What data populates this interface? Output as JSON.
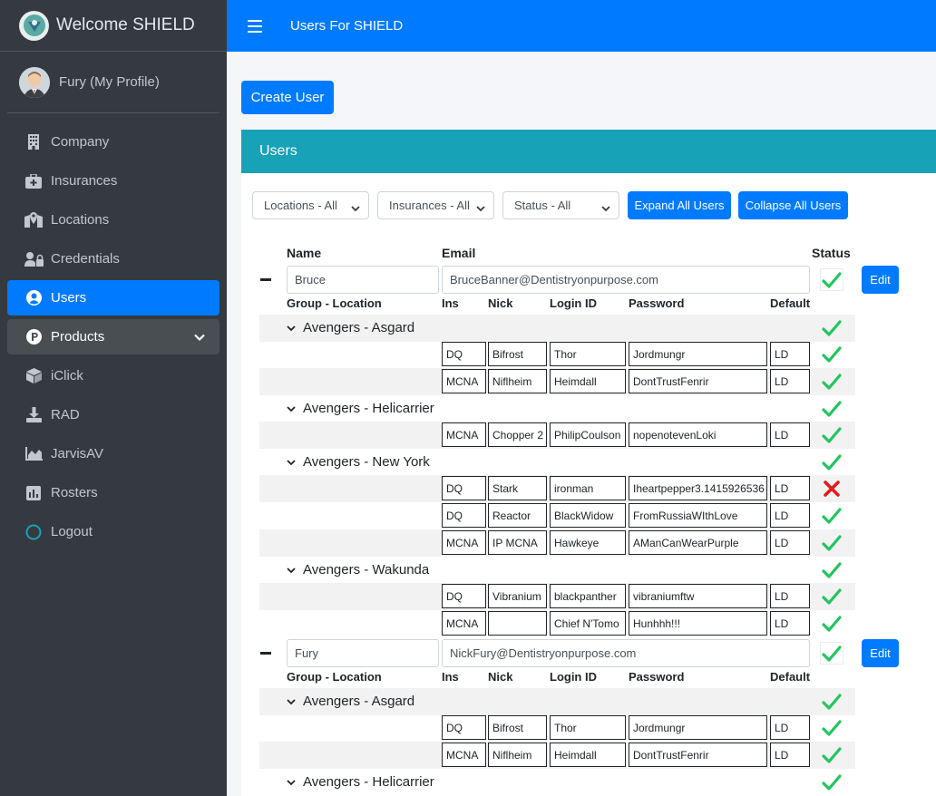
{
  "brand": {
    "title": "Welcome SHIELD"
  },
  "profile": {
    "name": "Fury (My Profile)"
  },
  "sidebar": {
    "items": [
      {
        "label": "Company",
        "icon": "building-icon"
      },
      {
        "label": "Insurances",
        "icon": "medkit-icon"
      },
      {
        "label": "Locations",
        "icon": "map-marker-icon"
      },
      {
        "label": "Credentials",
        "icon": "user-lock-icon"
      },
      {
        "label": "Users",
        "icon": "user-circle-icon",
        "active": true
      },
      {
        "label": "Products",
        "icon": "product-p-icon",
        "expanded": true
      },
      {
        "label": "iClick",
        "icon": "cube-icon"
      },
      {
        "label": "RAD",
        "icon": "download-icon"
      },
      {
        "label": "JarvisAV",
        "icon": "area-chart-icon"
      },
      {
        "label": "Rosters",
        "icon": "bar-chart-icon"
      },
      {
        "label": "Logout",
        "icon": "circle-icon"
      }
    ]
  },
  "topbar": {
    "title": "Users For SHIELD"
  },
  "actions": {
    "create_user": "Create User"
  },
  "card": {
    "title": "Users"
  },
  "filters": {
    "locations": "Locations - All",
    "insurances": "Insurances - All",
    "status": "Status - All",
    "expand_all": "Expand All Users",
    "collapse_all": "Collapse All Users"
  },
  "columns": {
    "name": "Name",
    "email": "Email",
    "status": "Status"
  },
  "subcolumns": {
    "group_location": "Group - Location",
    "ins": "Ins",
    "nick": "Nick",
    "login_id": "Login ID",
    "password": "Password",
    "default": "Default"
  },
  "edit_label": "Edit",
  "users": [
    {
      "name": "Bruce",
      "email": "BruceBanner@Dentistryonpurpose.com",
      "groups": [
        {
          "label": "Avengers - Asgard",
          "rows": [
            {
              "ins": "DQ",
              "nick": "Bifrost",
              "login": "Thor",
              "password": "Jordmungr",
              "default": "LD",
              "ok": true
            },
            {
              "ins": "MCNA",
              "nick": "Niflheim",
              "login": "Heimdall",
              "password": "DontTrustFenrir",
              "default": "LD",
              "ok": true
            }
          ]
        },
        {
          "label": "Avengers - Helicarrier",
          "rows": [
            {
              "ins": "MCNA",
              "nick": "Chopper 2",
              "login": "PhilipCoulson",
              "password": "nopenotevenLoki",
              "default": "LD",
              "ok": true
            }
          ]
        },
        {
          "label": "Avengers - New York",
          "rows": [
            {
              "ins": "DQ",
              "nick": "Stark",
              "login": "ironman",
              "password": "Iheartpepper3.1415926536",
              "default": "LD",
              "ok": false
            },
            {
              "ins": "DQ",
              "nick": "Reactor",
              "login": "BlackWidow",
              "password": "FromRussiaWIthLove",
              "default": "LD",
              "ok": true
            },
            {
              "ins": "MCNA",
              "nick": "IP MCNA",
              "login": "Hawkeye",
              "password": "AManCanWearPurple",
              "default": "LD",
              "ok": true
            }
          ]
        },
        {
          "label": "Avengers - Wakunda",
          "rows": [
            {
              "ins": "DQ",
              "nick": "Vibranium",
              "login": "blackpanther",
              "password": "vibraniumftw",
              "default": "LD",
              "ok": true
            },
            {
              "ins": "MCNA",
              "nick": "",
              "login": "Chief N'Tomo",
              "password": "Hunhhh!!!",
              "default": "LD",
              "ok": true
            }
          ]
        }
      ]
    },
    {
      "name": "Fury",
      "email": "NickFury@Dentistryonpurpose.com",
      "groups": [
        {
          "label": "Avengers - Asgard",
          "rows": [
            {
              "ins": "DQ",
              "nick": "Bifrost",
              "login": "Thor",
              "password": "Jordmungr",
              "default": "LD",
              "ok": true
            },
            {
              "ins": "MCNA",
              "nick": "Niflheim",
              "login": "Heimdall",
              "password": "DontTrustFenrir",
              "default": "LD",
              "ok": true
            }
          ]
        },
        {
          "label": "Avengers - Helicarrier",
          "rows": []
        }
      ]
    }
  ],
  "colors": {
    "primary": "#007bff",
    "info": "#17a2b8",
    "sidebar": "#343a40",
    "check": "#22c55e",
    "cross": "#e11d1d"
  }
}
